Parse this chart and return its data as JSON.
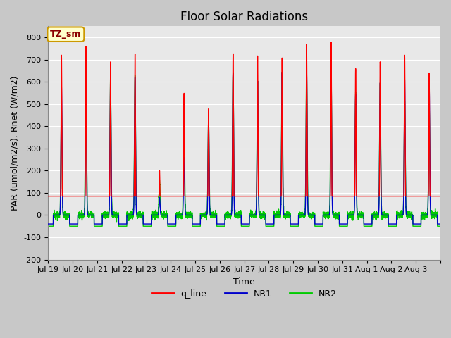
{
  "title": "Floor Solar Radiations",
  "ylabel": "PAR (umol/m2/s), Rnet (W/m2)",
  "xlabel": "Time",
  "ylim": [
    -200,
    850
  ],
  "yticks": [
    -200,
    -100,
    0,
    100,
    200,
    300,
    400,
    500,
    600,
    700,
    800
  ],
  "xtick_labels": [
    "Jul 19",
    "Jul 20",
    "Jul 21",
    "Jul 22",
    "Jul 23",
    "Jul 24",
    "Jul 25",
    "Jul 26",
    "Jul 27",
    "Jul 28",
    "Jul 29",
    "Jul 30",
    "Jul 31",
    "Aug 1",
    "Aug 2",
    "Aug 3"
  ],
  "annotation_text": "TZ_sm",
  "annotation_bg": "#ffffcc",
  "annotation_border": "#cc9900",
  "line_colors": {
    "q_line": "#ff0000",
    "NR1": "#0000cc",
    "NR2": "#00cc00"
  },
  "line_widths": {
    "q_line": 1.0,
    "NR1": 1.0,
    "NR2": 1.0
  },
  "fig_bg_color": "#c8c8c8",
  "plot_bg_color": "#e8e8e8",
  "title_fontsize": 12,
  "label_fontsize": 9,
  "tick_fontsize": 8,
  "q_peaks": [
    720,
    760,
    690,
    725,
    200,
    550,
    480,
    730,
    720,
    710,
    770,
    780,
    660,
    690,
    720,
    640
  ],
  "NR1_peaks": [
    580,
    660,
    610,
    620,
    80,
    260,
    450,
    640,
    605,
    645,
    665,
    660,
    545,
    595,
    615,
    600
  ],
  "NR2_peaks": [
    500,
    650,
    620,
    625,
    150,
    420,
    440,
    645,
    600,
    640,
    675,
    660,
    545,
    590,
    510,
    500
  ],
  "q_night": 85,
  "NR1_night": -40,
  "NR2_night": -50
}
